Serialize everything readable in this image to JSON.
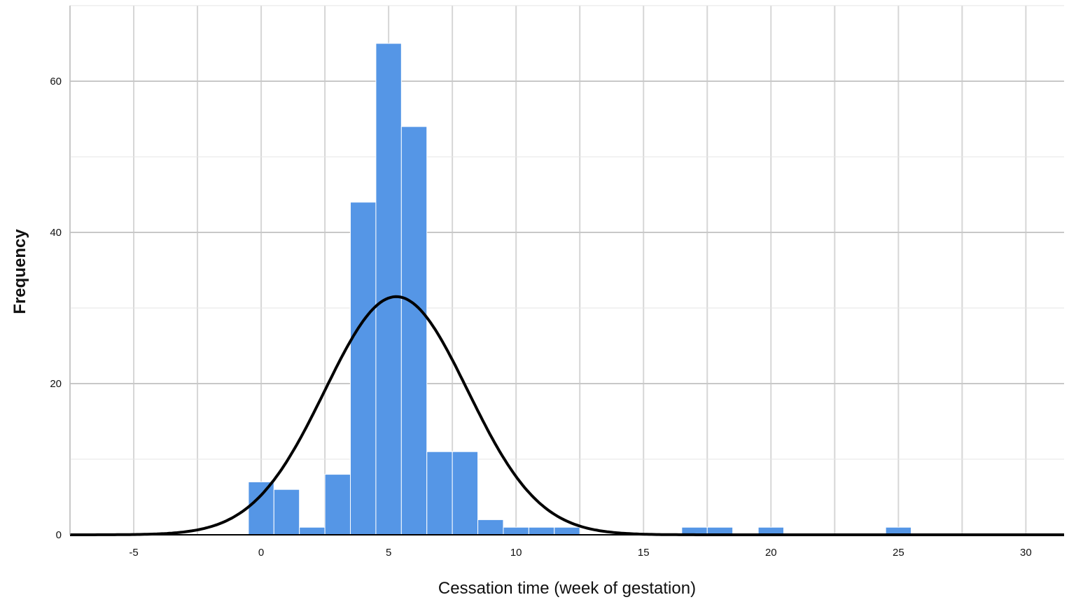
{
  "chart_data": {
    "type": "bar",
    "subtype": "histogram_with_normal_curve",
    "xlabel": "Cessation time (week of gestation)",
    "ylabel": "Frequency",
    "xlim": [
      -7.5,
      31.5
    ],
    "ylim": [
      0,
      70
    ],
    "x_ticks": [
      -5,
      0,
      5,
      10,
      15,
      20,
      25,
      30
    ],
    "x_tick_labels": [
      "-5",
      "0",
      "5",
      "10",
      "15",
      "20",
      "25",
      "30"
    ],
    "y_ticks": [
      0,
      20,
      40,
      60
    ],
    "y_tick_labels": [
      "0",
      "20",
      "40",
      "60"
    ],
    "grid": true,
    "bar_color": "#5596e6",
    "curve_color": "#000000",
    "bins": [
      {
        "start": -0.5,
        "end": 0.5,
        "count": 7
      },
      {
        "start": 0.5,
        "end": 1.5,
        "count": 6
      },
      {
        "start": 1.5,
        "end": 2.5,
        "count": 1
      },
      {
        "start": 2.5,
        "end": 3.5,
        "count": 8
      },
      {
        "start": 3.5,
        "end": 4.5,
        "count": 44
      },
      {
        "start": 4.5,
        "end": 5.5,
        "count": 65
      },
      {
        "start": 5.5,
        "end": 6.5,
        "count": 54
      },
      {
        "start": 6.5,
        "end": 7.5,
        "count": 11
      },
      {
        "start": 7.5,
        "end": 8.5,
        "count": 11
      },
      {
        "start": 8.5,
        "end": 9.5,
        "count": 2
      },
      {
        "start": 9.5,
        "end": 10.5,
        "count": 1
      },
      {
        "start": 10.5,
        "end": 11.5,
        "count": 1
      },
      {
        "start": 11.5,
        "end": 12.5,
        "count": 1
      },
      {
        "start": 16.5,
        "end": 17.5,
        "count": 1
      },
      {
        "start": 17.5,
        "end": 18.5,
        "count": 1
      },
      {
        "start": 19.5,
        "end": 20.5,
        "count": 1
      },
      {
        "start": 24.5,
        "end": 25.5,
        "count": 1
      }
    ],
    "normal_curve": {
      "mean": 5.3,
      "sd": 2.8,
      "peak": 31.5
    }
  }
}
